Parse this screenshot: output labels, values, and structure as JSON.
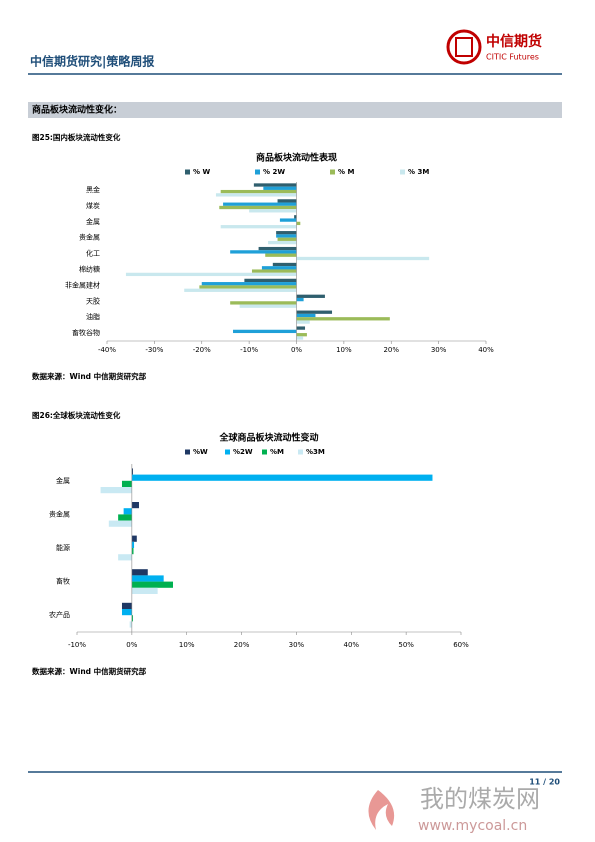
{
  "header": {
    "title": "中信期货研究|策略周报",
    "logo_cn": "中信期货",
    "logo_en": "CITIC Futures"
  },
  "section": {
    "title": "商品板块流动性变化："
  },
  "figures": [
    {
      "caption": "图25:国内板块流动性变化",
      "source": "数据来源：Wind  中信期货研究部"
    },
    {
      "caption": "图26:全球板块流动性变化",
      "source": "数据来源：Wind  中信期货研究部"
    }
  ],
  "chart_data": [
    {
      "type": "hbar",
      "title": "商品板块流动性表现",
      "categories": [
        "黑金",
        "煤炭",
        "金属",
        "贵金属",
        "化工",
        "棉纺糖",
        "非金属建材",
        "天胶",
        "油脂",
        "畜牧谷物"
      ],
      "series": [
        {
          "name": "% W",
          "color": "#2f5f6e",
          "values": [
            -9,
            -4,
            -0.5,
            -4.3,
            -8,
            -5,
            -11,
            6,
            7.5,
            1.8
          ]
        },
        {
          "name": "% 2W",
          "color": "#1fa0d8",
          "values": [
            -7,
            -15.5,
            -3.5,
            -4.3,
            -14,
            -7.3,
            -20,
            1.5,
            4,
            -13.4
          ]
        },
        {
          "name": "% M",
          "color": "#9bbb59",
          "values": [
            -16,
            -16.3,
            0.8,
            -4,
            -6.6,
            -9.4,
            -20.5,
            -14,
            19.7,
            2.2
          ]
        },
        {
          "name": "% 3M",
          "color": "#c9e8ee",
          "values": [
            -17,
            -10,
            -16,
            -6,
            28,
            -36,
            -23.7,
            -12,
            2.8,
            1.4
          ]
        }
      ],
      "xlim": [
        -40,
        40
      ],
      "xticks": [
        {
          "value": -40,
          "label": "-40%"
        },
        {
          "value": -30,
          "label": "-30%"
        },
        {
          "value": -20,
          "label": "-20%"
        },
        {
          "value": -10,
          "label": "-10%"
        },
        {
          "value": 0,
          "label": "0%"
        },
        {
          "value": 10,
          "label": "10%"
        },
        {
          "value": 20,
          "label": "20%"
        },
        {
          "value": 30,
          "label": "30%"
        },
        {
          "value": 40,
          "label": "40%"
        }
      ],
      "legend": "top"
    },
    {
      "type": "hbar",
      "title": "全球商品板块流动性变动",
      "categories": [
        "金属",
        "贵金属",
        "能源",
        "畜牧",
        "农产品"
      ],
      "series": [
        {
          "name": "%W",
          "color": "#1f3864",
          "values": [
            0.2,
            1.3,
            0.9,
            2.9,
            -1.8
          ]
        },
        {
          "name": "%2W",
          "color": "#00b0f0",
          "values": [
            54.8,
            -1.5,
            0.4,
            5.8,
            -1.8
          ]
        },
        {
          "name": "%M",
          "color": "#00b050",
          "values": [
            -1.8,
            -2.5,
            0.3,
            7.5,
            0.2
          ]
        },
        {
          "name": "%3M",
          "color": "#c9e9f3",
          "values": [
            -5.7,
            -4.2,
            -2.5,
            4.7,
            -0.4
          ]
        }
      ],
      "xlim": [
        -10,
        60
      ],
      "xticks": [
        {
          "value": -10,
          "label": "-10%"
        },
        {
          "value": 0,
          "label": "0%"
        },
        {
          "value": 10,
          "label": "10%"
        },
        {
          "value": 20,
          "label": "20%"
        },
        {
          "value": 30,
          "label": "30%"
        },
        {
          "value": 40,
          "label": "40%"
        },
        {
          "value": 50,
          "label": "50%"
        },
        {
          "value": 60,
          "label": "60%"
        }
      ],
      "legend": "top"
    }
  ],
  "footer": {
    "page": "11 / 20"
  },
  "watermark": {
    "name": "我的煤炭网",
    "url": "www.mycoal.cn"
  }
}
